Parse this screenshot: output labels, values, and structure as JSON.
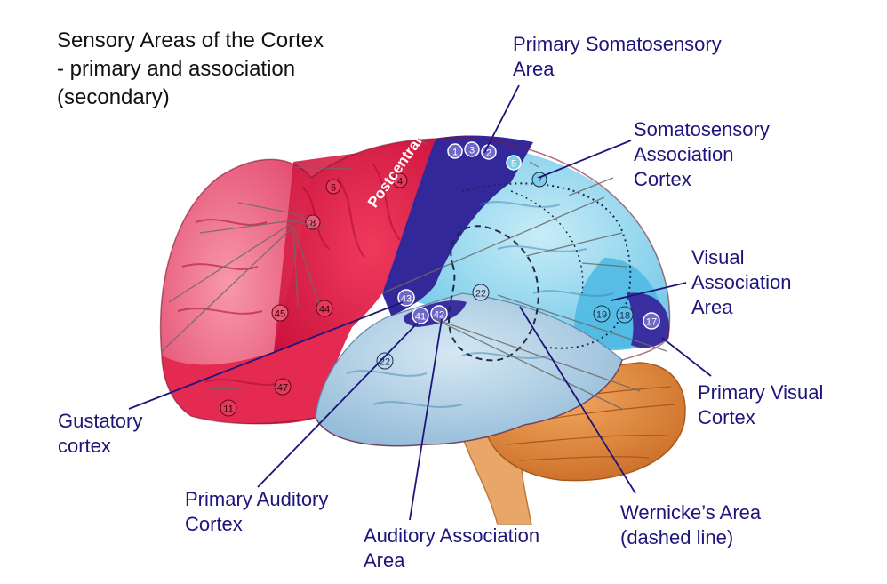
{
  "title": {
    "line1": "Sensory Areas of the Cortex",
    "line2": "- primary and association",
    "line3": "(secondary)"
  },
  "labels": {
    "primary_somatosensory": {
      "line1": "Primary Somatosensory",
      "line2": "Area"
    },
    "somatosensory_association": {
      "line1": "Somatosensory",
      "line2": "Association",
      "line3": "Cortex"
    },
    "visual_association": {
      "line1": "Visual",
      "line2": "Association",
      "line3": "Area"
    },
    "primary_visual": {
      "line1": "Primary Visual",
      "line2": "Cortex"
    },
    "wernickes": {
      "line1": "Wernicke’s Area",
      "line2": "(dashed line)"
    },
    "auditory_association": {
      "line1": "Auditory Association",
      "line2": "Area"
    },
    "primary_auditory": {
      "line1": "Primary Auditory",
      "line2": "Cortex"
    },
    "gustatory": {
      "line1": "Gustatory",
      "line2": "cortex"
    }
  },
  "gyrus_label": "Postcentral gyrus",
  "brodmann": {
    "a1": "1",
    "a2": "2",
    "a3": "3",
    "a4": "4",
    "a5": "5",
    "a6": "6",
    "a7": "7",
    "a8": "8",
    "a45": "45",
    "a44": "44",
    "a43": "43",
    "a41": "41",
    "a42": "42",
    "a22a": "22",
    "a22b": "22",
    "a47": "47",
    "a11": "11",
    "a19": "19",
    "a18": "18",
    "a17": "17"
  },
  "colors": {
    "label_text": "#1e157a",
    "leader_line": "#1e157a",
    "frontal_red": "#e01a46",
    "prefrontal_pink": "#f06a86",
    "postcentral_blue": "#3a2fa0",
    "parietal_light_blue": "#8fd2ea",
    "temporal_pale_blue": "#aed0e6",
    "occipital_blue": "#5ec0e6",
    "cerebellum_orange": "#e08a3a",
    "brainstem": "#e6a060"
  }
}
